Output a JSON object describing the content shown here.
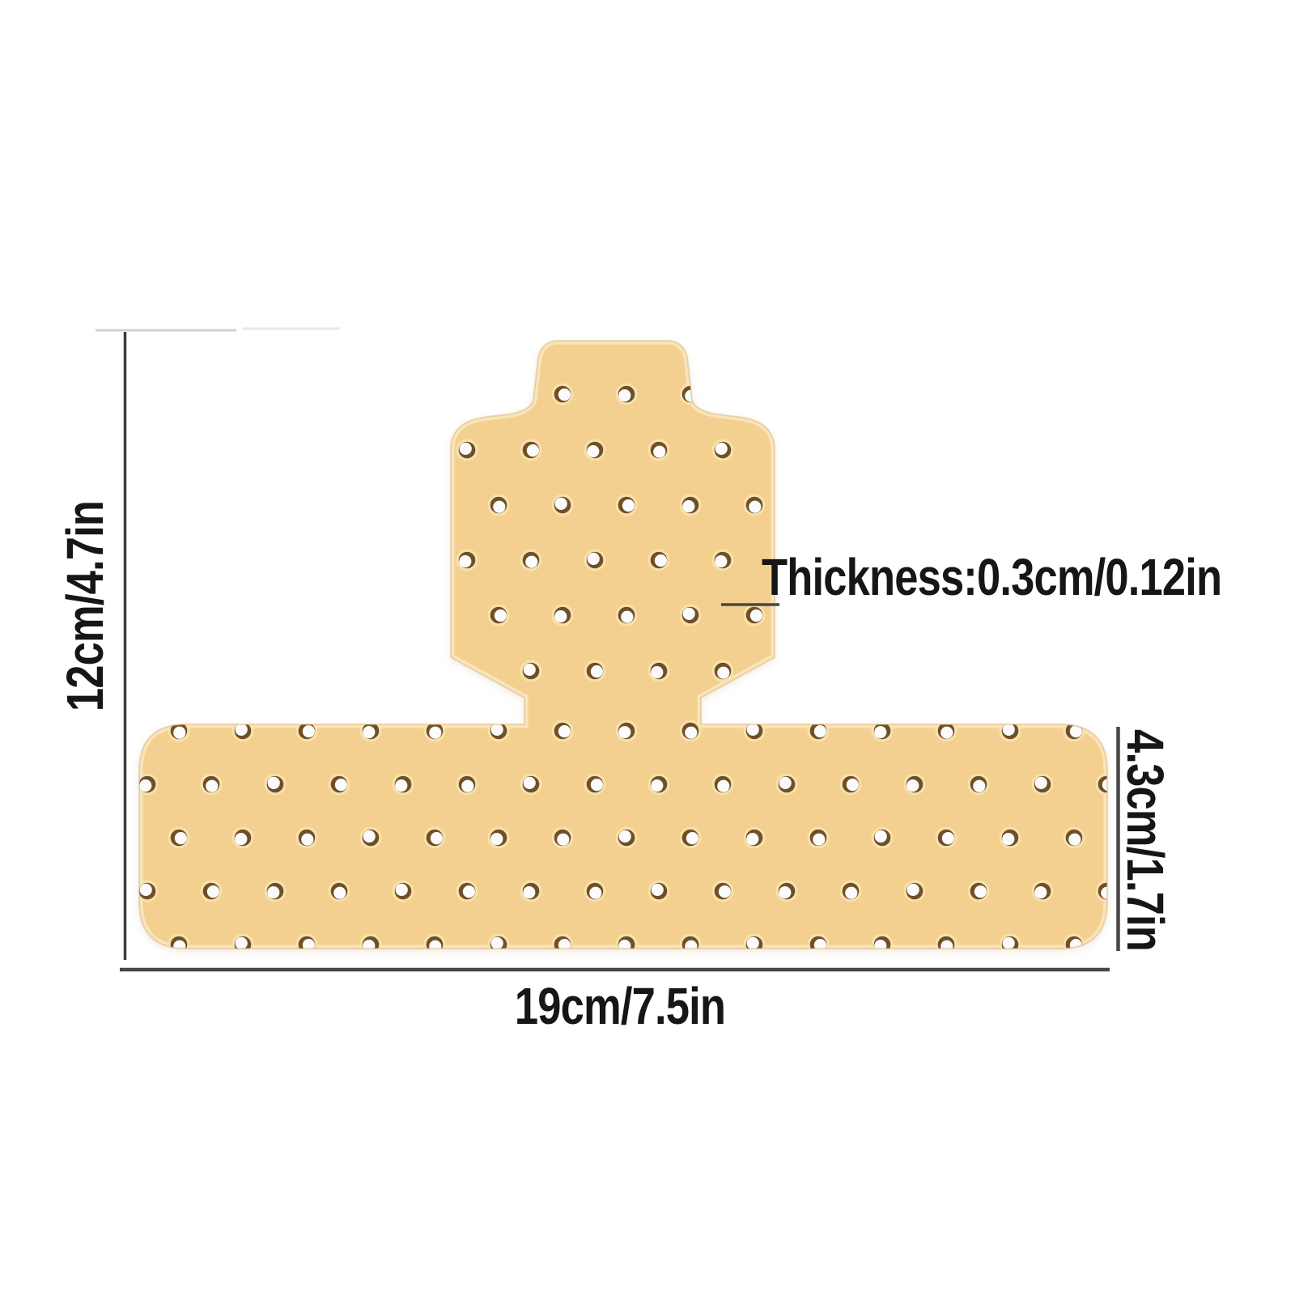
{
  "figure_description": "T-shaped perforated adhesive bandage dimension diagram",
  "diagram": {
    "labels": {
      "height": "12cm/4.7in",
      "width": "19cm/7.5in",
      "bar_height": "4.3cm/1.7in",
      "thickness": "Thickness:0.3cm/0.12in"
    }
  },
  "colors": {
    "background": "#ffffff",
    "text": "#161616",
    "dim_line": "#474747",
    "dim_line_dark": "#3c3c3c",
    "faint_tick": "#d2d2d2",
    "faint_tick_light": "#e9e9e9",
    "patch_fill": "#f3d090",
    "patch_rim": "#f9e8c3",
    "patch_edge": "#dcb273",
    "hole_ring": "#6f4f28",
    "hole_center": "#fbfbfb",
    "hole_halo": "#f8e4b0"
  }
}
